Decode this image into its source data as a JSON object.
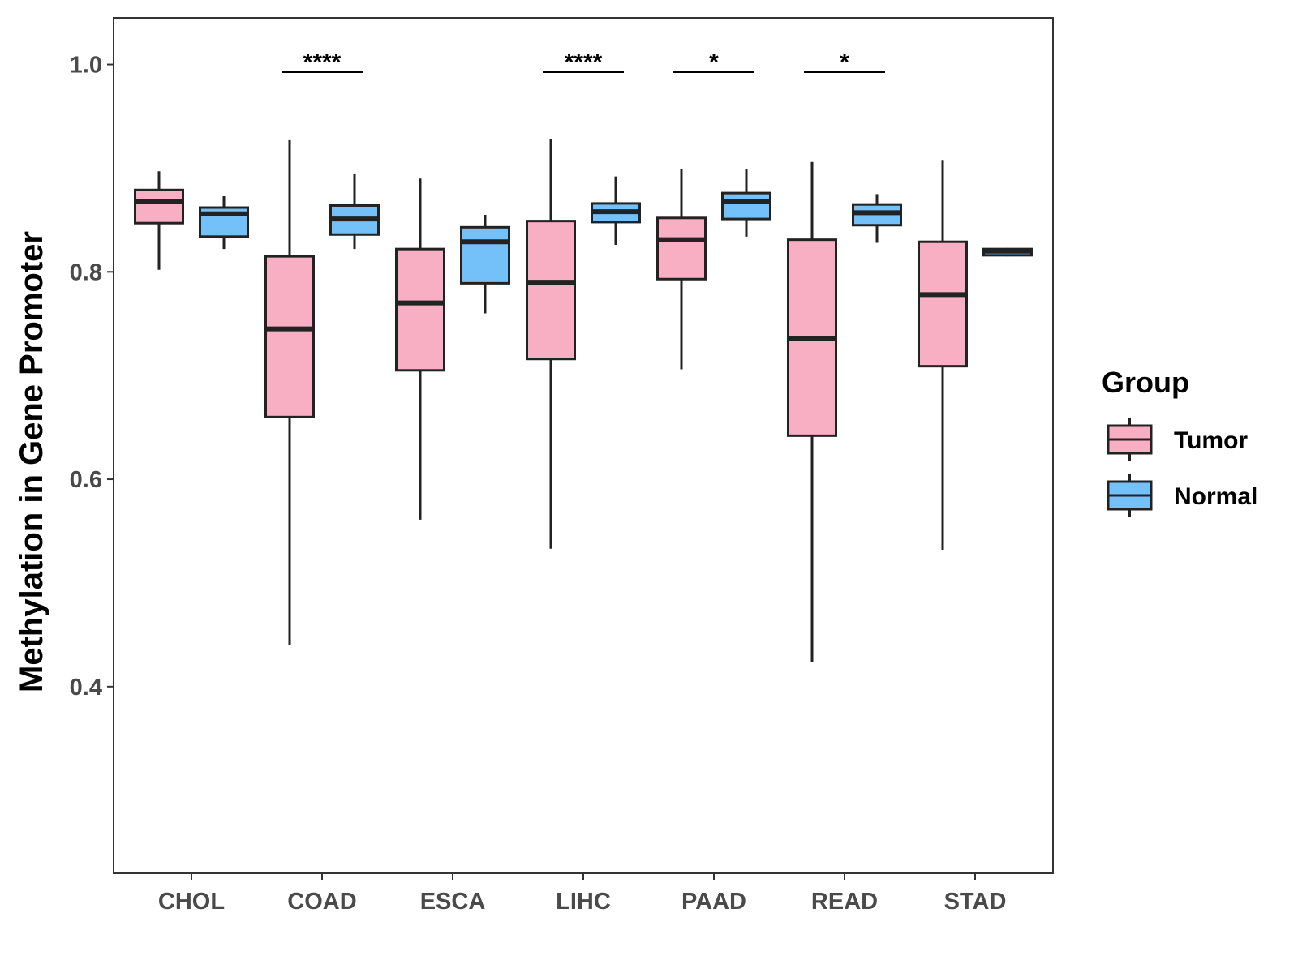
{
  "chart_data": {
    "type": "boxplot",
    "title": "",
    "xlabel": "",
    "ylabel": "Methylation in Gene Promoter",
    "ylim": [
      0.22,
      1.045
    ],
    "yticks": [
      0.4,
      0.6,
      0.8,
      1.0
    ],
    "ytick_labels": [
      "0.4",
      "0.6",
      "0.8",
      "1.0"
    ],
    "categories": [
      "CHOL",
      "COAD",
      "ESCA",
      "LIHC",
      "PAAD",
      "READ",
      "STAD"
    ],
    "legend": {
      "title": "Group",
      "placement": "right",
      "entries": [
        {
          "name": "Tumor",
          "color": "#F9AFC3"
        },
        {
          "name": "Normal",
          "color": "#74C0F9"
        }
      ]
    },
    "colors": {
      "Tumor": "#F9AFC3",
      "Normal": "#74C0F9",
      "line": "#222222",
      "panel_border": "#333333"
    },
    "series": [
      {
        "name": "Tumor",
        "boxes": [
          {
            "category": "CHOL",
            "min": 0.802,
            "q1": 0.847,
            "median": 0.868,
            "q3": 0.879,
            "max": 0.897
          },
          {
            "category": "COAD",
            "min": 0.44,
            "q1": 0.66,
            "median": 0.745,
            "q3": 0.815,
            "max": 0.927
          },
          {
            "category": "ESCA",
            "min": 0.561,
            "q1": 0.705,
            "median": 0.77,
            "q3": 0.822,
            "max": 0.89
          },
          {
            "category": "LIHC",
            "min": 0.533,
            "q1": 0.716,
            "median": 0.79,
            "q3": 0.849,
            "max": 0.928
          },
          {
            "category": "PAAD",
            "min": 0.706,
            "q1": 0.793,
            "median": 0.831,
            "q3": 0.852,
            "max": 0.899
          },
          {
            "category": "READ",
            "min": 0.424,
            "q1": 0.642,
            "median": 0.736,
            "q3": 0.831,
            "max": 0.906
          },
          {
            "category": "STAD",
            "min": 0.532,
            "q1": 0.709,
            "median": 0.778,
            "q3": 0.829,
            "max": 0.908
          }
        ]
      },
      {
        "name": "Normal",
        "boxes": [
          {
            "category": "CHOL",
            "min": 0.822,
            "q1": 0.834,
            "median": 0.856,
            "q3": 0.862,
            "max": 0.873
          },
          {
            "category": "COAD",
            "min": 0.822,
            "q1": 0.836,
            "median": 0.851,
            "q3": 0.864,
            "max": 0.895
          },
          {
            "category": "ESCA",
            "min": 0.76,
            "q1": 0.789,
            "median": 0.829,
            "q3": 0.843,
            "max": 0.855
          },
          {
            "category": "LIHC",
            "min": 0.826,
            "q1": 0.848,
            "median": 0.858,
            "q3": 0.866,
            "max": 0.892
          },
          {
            "category": "PAAD",
            "min": 0.834,
            "q1": 0.851,
            "median": 0.868,
            "q3": 0.876,
            "max": 0.899
          },
          {
            "category": "READ",
            "min": 0.828,
            "q1": 0.845,
            "median": 0.857,
            "q3": 0.865,
            "max": 0.875
          },
          {
            "category": "STAD",
            "min": 0.815,
            "q1": 0.816,
            "median": 0.82,
            "q3": 0.822,
            "max": 0.823
          }
        ]
      }
    ],
    "significance": [
      {
        "category": "COAD",
        "label": "****",
        "y": 0.993
      },
      {
        "category": "LIHC",
        "label": "****",
        "y": 0.993
      },
      {
        "category": "PAAD",
        "label": "*",
        "y": 0.993
      },
      {
        "category": "READ",
        "label": "*",
        "y": 0.993
      }
    ]
  }
}
